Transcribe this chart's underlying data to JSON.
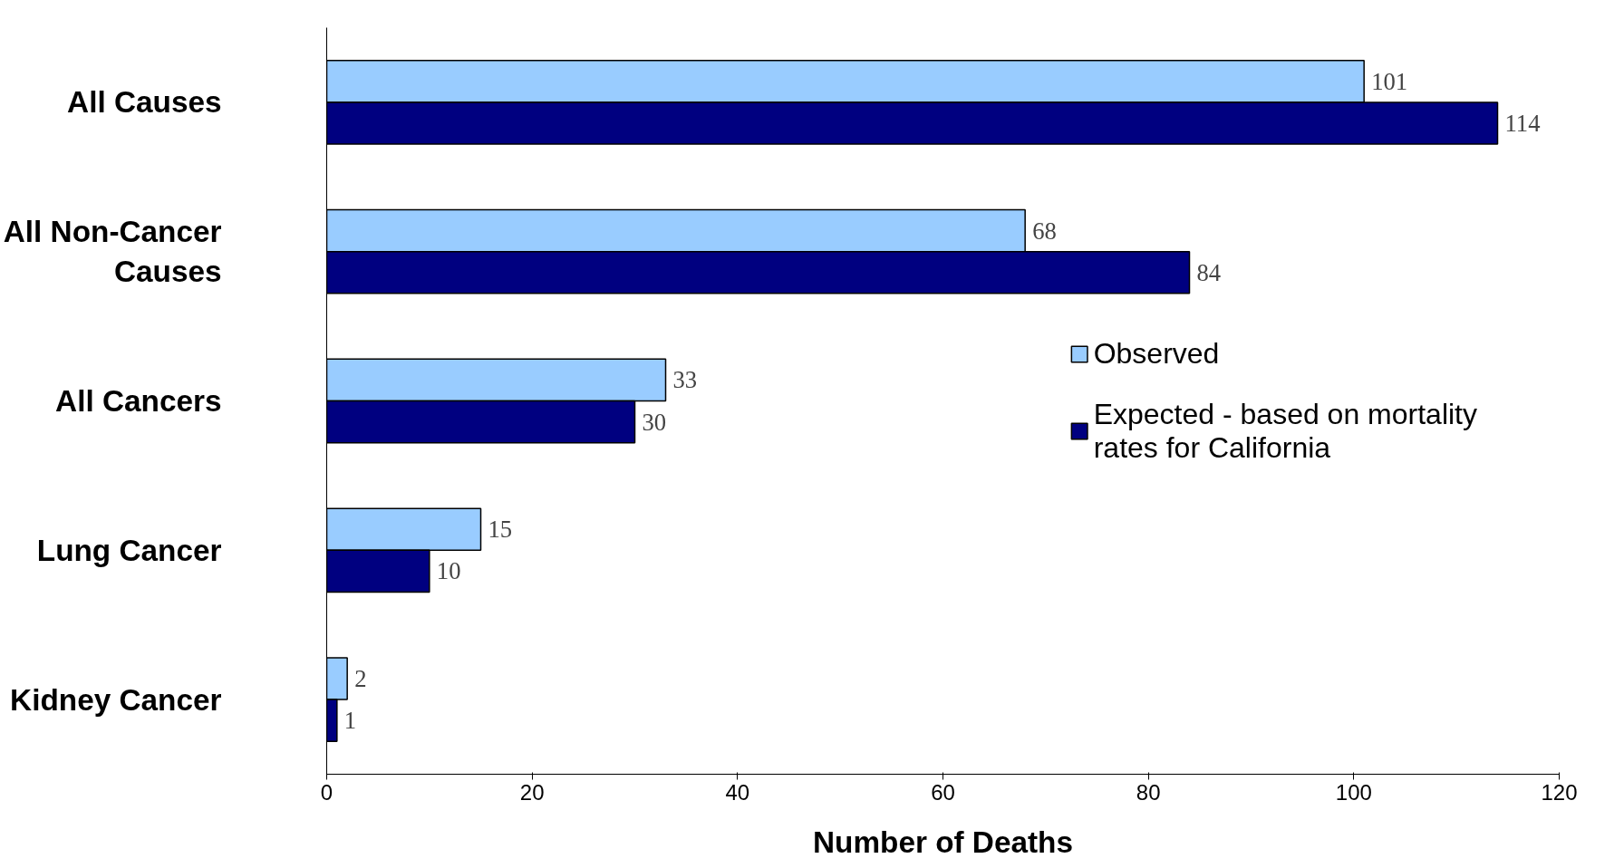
{
  "chart_data": {
    "type": "bar",
    "orientation": "horizontal",
    "xlabel": "Number of Deaths",
    "categories": [
      "All Causes",
      "All Non-Cancer Causes",
      "All Cancers",
      "Lung Cancer",
      "Kidney Cancer"
    ],
    "series": [
      {
        "name": "Observed",
        "color": "#99ccff",
        "values": [
          101,
          68,
          33,
          15,
          2
        ]
      },
      {
        "name": "Expected - based on mortality rates for California",
        "color": "#000080",
        "values": [
          114,
          84,
          30,
          10,
          1
        ]
      }
    ],
    "xlim": [
      0,
      120
    ],
    "xticks": [
      0,
      20,
      40,
      60,
      80,
      100,
      120
    ],
    "data_labels": true,
    "grid": false,
    "legend": "right"
  }
}
